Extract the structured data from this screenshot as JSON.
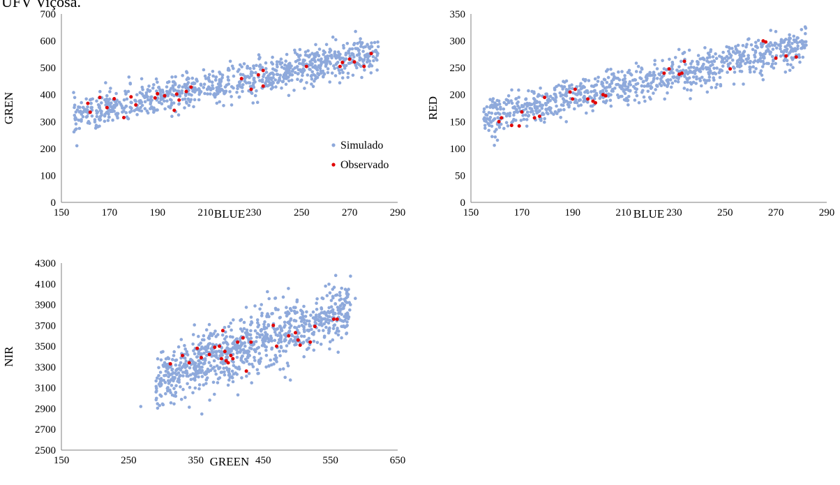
{
  "caption": "UFV Viçosa.",
  "colors": {
    "simulated": "#8ea9db",
    "observed": "#e00000",
    "axis": "#7f7f7f"
  },
  "chart_data": [
    {
      "type": "scatter",
      "xlabel": "BLUE",
      "ylabel": "GREN",
      "xlim": [
        150,
        290
      ],
      "ylim": [
        0,
        700
      ],
      "xticks": [
        150,
        170,
        190,
        210,
        230,
        250,
        270,
        290
      ],
      "yticks": [
        0,
        100,
        200,
        300,
        400,
        500,
        600,
        700
      ],
      "grid": false,
      "legend": {
        "placement": "bottom-right",
        "entries": [
          "Simulado",
          "Observado"
        ]
      },
      "series": [
        {
          "name": "Simulado",
          "trend": {
            "x0": 155,
            "x1": 282,
            "y0": 320,
            "y1": 560,
            "spread": 38
          },
          "count": 900
        },
        {
          "name": "Observado",
          "points": [
            [
              162,
              335
            ],
            [
              161,
              368
            ],
            [
              166,
              390
            ],
            [
              169,
              352
            ],
            [
              172,
              385
            ],
            [
              176,
              315
            ],
            [
              179,
              392
            ],
            [
              181,
              362
            ],
            [
              189,
              388
            ],
            [
              190,
              404
            ],
            [
              193,
              396
            ],
            [
              197,
              342
            ],
            [
              198,
              402
            ],
            [
              199,
              380
            ],
            [
              202,
              412
            ],
            [
              204,
              428
            ],
            [
              225,
              460
            ],
            [
              229,
              420
            ],
            [
              232,
              474
            ],
            [
              234,
              490
            ],
            [
              234,
              432
            ],
            [
              252,
              505
            ],
            [
              266,
              505
            ],
            [
              267,
              520
            ],
            [
              270,
              532
            ],
            [
              272,
              522
            ],
            [
              276,
              505
            ],
            [
              279,
              553
            ]
          ]
        }
      ]
    },
    {
      "type": "scatter",
      "xlabel": "BLUE",
      "ylabel": "RED",
      "xlim": [
        150,
        290
      ],
      "ylim": [
        0,
        350
      ],
      "xticks": [
        150,
        170,
        190,
        210,
        230,
        250,
        270,
        290
      ],
      "yticks": [
        0,
        50,
        100,
        150,
        200,
        250,
        300,
        350
      ],
      "grid": false,
      "series": [
        {
          "name": "Simulado",
          "trend": {
            "x0": 155,
            "x1": 282,
            "y0": 158,
            "y1": 290,
            "spread": 20
          },
          "count": 900
        },
        {
          "name": "Observado",
          "points": [
            [
              161,
              150
            ],
            [
              162,
              157
            ],
            [
              166,
              143
            ],
            [
              169,
              142
            ],
            [
              170,
              168
            ],
            [
              175,
              157
            ],
            [
              177,
              160
            ],
            [
              179,
              195
            ],
            [
              189,
              205
            ],
            [
              190,
              192
            ],
            [
              191,
              210
            ],
            [
              196,
              192
            ],
            [
              198,
              188
            ],
            [
              199,
              185
            ],
            [
              202,
              200
            ],
            [
              203,
              198
            ],
            [
              226,
              240
            ],
            [
              228,
              248
            ],
            [
              232,
              238
            ],
            [
              233,
              240
            ],
            [
              234,
              262
            ],
            [
              252,
              248
            ],
            [
              265,
              300
            ],
            [
              266,
              298
            ],
            [
              270,
              268
            ],
            [
              274,
              272
            ],
            [
              278,
              270
            ]
          ]
        }
      ]
    },
    {
      "type": "scatter",
      "xlabel": "GREEN",
      "ylabel": "NIR",
      "xlim": [
        150,
        650
      ],
      "ylim": [
        2500,
        4300
      ],
      "xticks": [
        150,
        250,
        350,
        450,
        550,
        650
      ],
      "yticks": [
        2500,
        2700,
        2900,
        3100,
        3300,
        3500,
        3700,
        3900,
        4100,
        4300
      ],
      "grid": false,
      "series": [
        {
          "name": "Simulado",
          "trend": {
            "x0": 290,
            "x1": 580,
            "y0": 3170,
            "y1": 3870,
            "spread": 170
          },
          "count": 900,
          "outliers": [
            [
              268,
              2920
            ],
            [
              587,
              3960
            ],
            [
              575,
              3700
            ]
          ]
        },
        {
          "name": "Observado",
          "points": [
            [
              312,
              3330
            ],
            [
              330,
              3410
            ],
            [
              340,
              3340
            ],
            [
              352,
              3480
            ],
            [
              358,
              3390
            ],
            [
              370,
              3420
            ],
            [
              378,
              3490
            ],
            [
              385,
              3500
            ],
            [
              388,
              3380
            ],
            [
              390,
              3650
            ],
            [
              393,
              3450
            ],
            [
              395,
              3360
            ],
            [
              398,
              3340
            ],
            [
              402,
              3410
            ],
            [
              405,
              3380
            ],
            [
              412,
              3540
            ],
            [
              420,
              3580
            ],
            [
              425,
              3260
            ],
            [
              432,
              3540
            ],
            [
              465,
              3700
            ],
            [
              470,
              3500
            ],
            [
              488,
              3600
            ],
            [
              498,
              3630
            ],
            [
              502,
              3560
            ],
            [
              505,
              3510
            ],
            [
              520,
              3540
            ],
            [
              527,
              3690
            ],
            [
              555,
              3760
            ],
            [
              560,
              3760
            ]
          ]
        }
      ]
    }
  ]
}
